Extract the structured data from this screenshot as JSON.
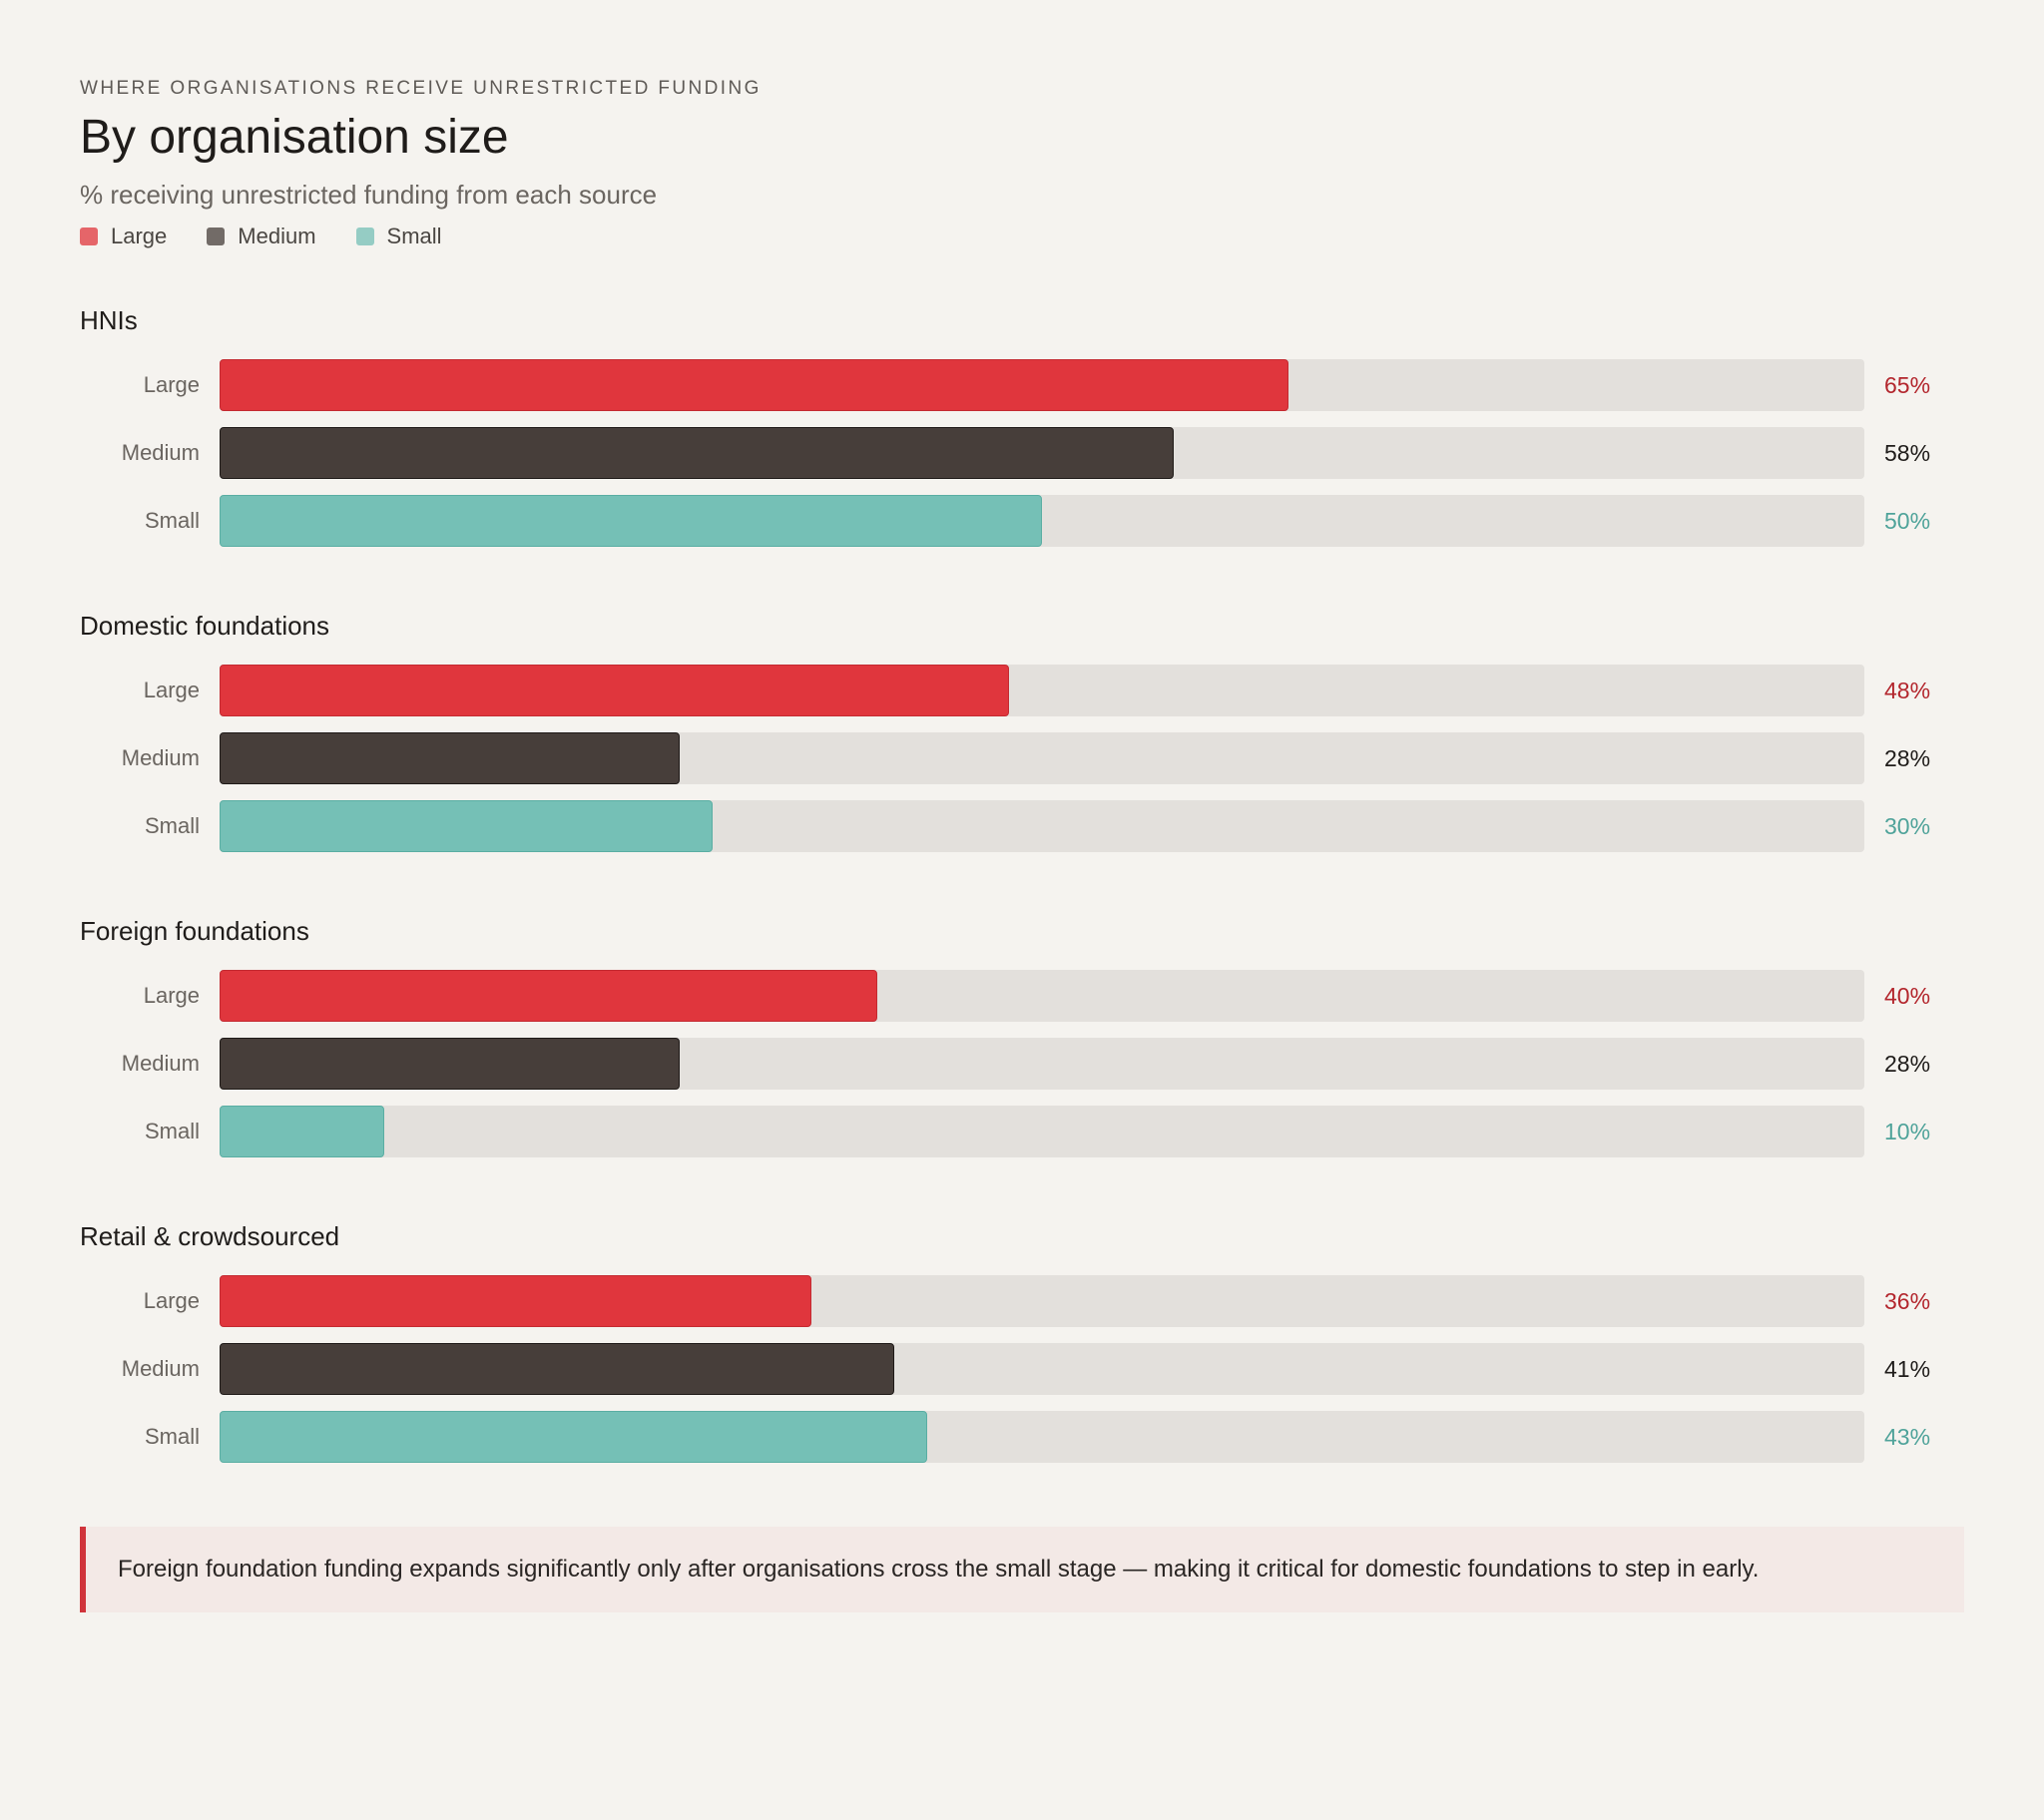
{
  "header": {
    "kicker": "WHERE ORGANISATIONS RECEIVE UNRESTRICTED FUNDING",
    "title": "By organisation size",
    "subtitle": "% receiving unrestricted funding from each source"
  },
  "legend": [
    {
      "label": "Large",
      "color": "#e0363d"
    },
    {
      "label": "Medium",
      "color": "#473e3a"
    },
    {
      "label": "Small",
      "color": "#75c0b6"
    }
  ],
  "chart_data": {
    "type": "bar",
    "orientation": "horizontal",
    "title": "By organisation size",
    "subtitle": "% receiving unrestricted funding from each source",
    "xlim": [
      0,
      100
    ],
    "unit": "%",
    "series_names": [
      "Large",
      "Medium",
      "Small"
    ],
    "series_colors": {
      "Large": "#e0363d",
      "Medium": "#473e3a",
      "Small": "#75c0b6"
    },
    "value_label_colors": {
      "Large": "#b3262d",
      "Medium": "#1f1c1a",
      "Small": "#4fa39a"
    },
    "groups": [
      {
        "name": "HNIs",
        "rows": [
          {
            "series": "Large",
            "value": 65,
            "label": "65%"
          },
          {
            "series": "Medium",
            "value": 58,
            "label": "58%"
          },
          {
            "series": "Small",
            "value": 50,
            "label": "50%"
          }
        ]
      },
      {
        "name": "Domestic foundations",
        "rows": [
          {
            "series": "Large",
            "value": 48,
            "label": "48%"
          },
          {
            "series": "Medium",
            "value": 28,
            "label": "28%"
          },
          {
            "series": "Small",
            "value": 30,
            "label": "30%"
          }
        ]
      },
      {
        "name": "Foreign foundations",
        "rows": [
          {
            "series": "Large",
            "value": 40,
            "label": "40%"
          },
          {
            "series": "Medium",
            "value": 28,
            "label": "28%"
          },
          {
            "series": "Small",
            "value": 10,
            "label": "10%"
          }
        ]
      },
      {
        "name": "Retail & crowdsourced",
        "rows": [
          {
            "series": "Large",
            "value": 36,
            "label": "36%"
          },
          {
            "series": "Medium",
            "value": 41,
            "label": "41%"
          },
          {
            "series": "Small",
            "value": 43,
            "label": "43%"
          }
        ]
      }
    ]
  },
  "callout": {
    "text": "Foreign foundation funding expands significantly only after organisations cross the small stage — making it critical for domestic foundations to step in early.",
    "accent_color": "#d0343b"
  }
}
